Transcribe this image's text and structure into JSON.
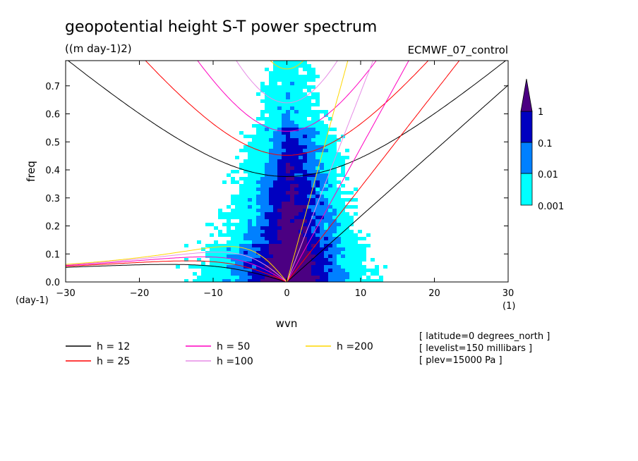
{
  "chart_data": {
    "type": "heatmap",
    "title": "geopotential height S-T power spectrum",
    "units": "((m day-1)2)",
    "source": "ECMWF_07_control",
    "xlabel": "wvn",
    "ylabel": "freq",
    "x_unit": "(1)",
    "y_unit": "(day-1)",
    "xlim": [
      -30,
      30
    ],
    "ylim": [
      0,
      0.79
    ],
    "x_ticks": [
      -30,
      -20,
      -10,
      0,
      10,
      20,
      30
    ],
    "y_ticks": [
      0.0,
      0.1,
      0.2,
      0.3,
      0.4,
      0.5,
      0.6,
      0.7
    ],
    "colorbar": {
      "levels": [
        "0.001",
        "0.01",
        "0.1",
        "1"
      ],
      "colors": [
        "#ffffff",
        "#00ffff",
        "#0080ff",
        "#0000c0",
        "#4b0082"
      ]
    },
    "curves": [
      {
        "label": "h = 12",
        "h": 12,
        "color": "#000000"
      },
      {
        "label": "h = 25",
        "h": 25,
        "color": "#ff0000"
      },
      {
        "label": "h = 50",
        "h": 50,
        "color": "#ff00c0"
      },
      {
        "label": "h =100",
        "h": 100,
        "color": "#e68ce6"
      },
      {
        "label": "h =200",
        "h": 200,
        "color": "#ffd700"
      }
    ],
    "info": [
      "[ latitude=0 degrees_north ]",
      "[ levelist=150 millibars ]",
      "[ plev=15000 Pa ]"
    ]
  }
}
